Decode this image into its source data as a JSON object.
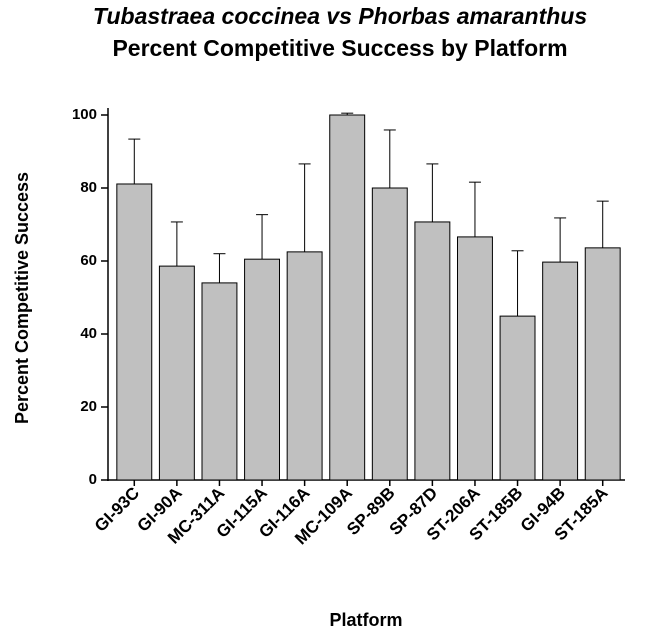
{
  "chart_data": {
    "type": "bar",
    "title": "Tubastraea coccinea vs Phorbas amaranthus",
    "subtitle": "Percent Competitive Success by Platform",
    "x_label": "Platform",
    "y_label": "Percent Competitive Success",
    "categories": [
      "GI-93C",
      "GI-90A",
      "MC-311A",
      "GI-115A",
      "GI-116A",
      "MC-109A",
      "SP-89B",
      "SP-87D",
      "ST-206A",
      "ST-185B",
      "GI-94B",
      "ST-185A"
    ],
    "values": [
      81.1,
      58.6,
      54,
      60.5,
      62.5,
      100,
      80,
      70.7,
      66.6,
      44.9,
      59.7,
      63.6
    ],
    "errors": [
      12.3,
      12.1,
      8,
      12.2,
      24.1,
      0.5,
      15.9,
      15.9,
      15,
      17.9,
      12.1,
      12.8
    ],
    "color": "#c0c0c0",
    "ylim": [
      0,
      100
    ],
    "yticks": [
      0,
      20,
      40,
      60,
      80,
      100
    ],
    "grid": false
  }
}
